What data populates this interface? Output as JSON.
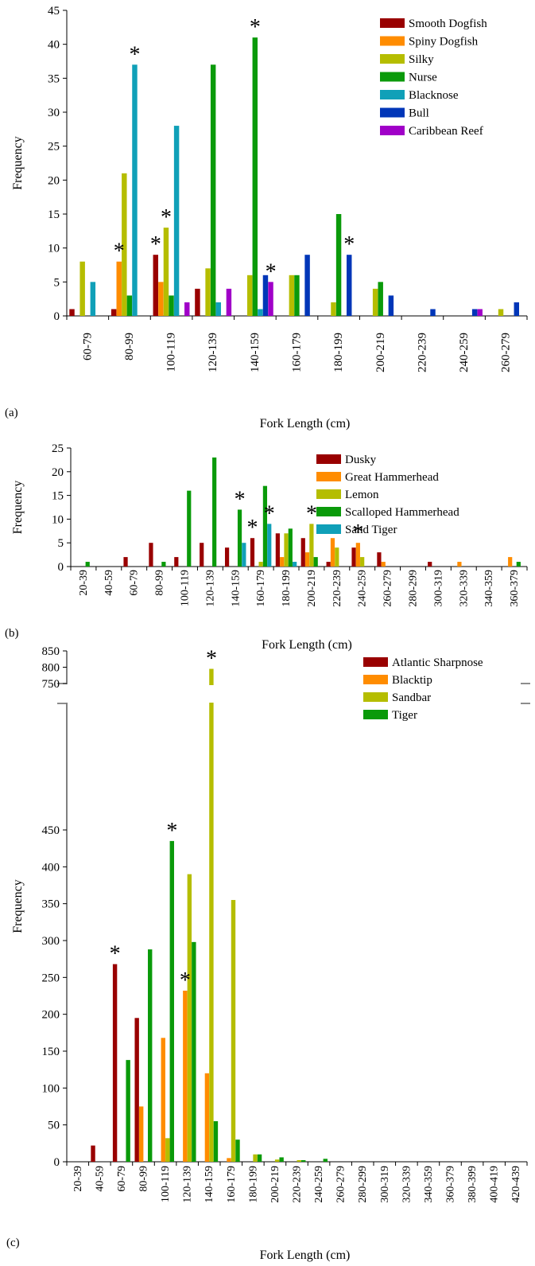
{
  "colors": {
    "c1": "#990000",
    "c2": "#ff8c00",
    "c3": "#b5bd00",
    "c4": "#0a9a0a",
    "c5": "#10a0b8",
    "c6": "#0036b8",
    "c7": "#a000c8"
  },
  "chart_data": [
    {
      "type": "bar",
      "panel": "(a)",
      "ylabel": "Frequency",
      "xlabel": "Fork Length (cm)",
      "ylim": [
        0,
        45
      ],
      "yticks": [
        0,
        5,
        10,
        15,
        20,
        25,
        30,
        35,
        40,
        45
      ],
      "legend_position": "top-right",
      "categories": [
        "60-79",
        "80-99",
        "100-119",
        "120-139",
        "140-159",
        "160-179",
        "180-199",
        "200-219",
        "220-239",
        "240-259",
        "260-279"
      ],
      "series": [
        {
          "name": "Smooth Dogfish",
          "color_key": "c1",
          "values": [
            1,
            1,
            9,
            4,
            0,
            0,
            0,
            0,
            0,
            0,
            0
          ]
        },
        {
          "name": "Spiny Dogfish",
          "color_key": "c2",
          "values": [
            0,
            8,
            5,
            0,
            0,
            0,
            0,
            0,
            0,
            0,
            0
          ]
        },
        {
          "name": "Silky",
          "color_key": "c3",
          "values": [
            8,
            21,
            13,
            7,
            6,
            6,
            2,
            4,
            0,
            0,
            1
          ]
        },
        {
          "name": "Nurse",
          "color_key": "c4",
          "values": [
            0,
            3,
            3,
            37,
            41,
            6,
            15,
            5,
            0,
            0,
            0
          ]
        },
        {
          "name": "Blacknose",
          "color_key": "c5",
          "values": [
            5,
            37,
            28,
            2,
            1,
            0,
            0,
            0,
            0,
            0,
            0
          ]
        },
        {
          "name": "Bull",
          "color_key": "c6",
          "values": [
            0,
            0,
            0,
            0,
            6,
            9,
            9,
            3,
            1,
            1,
            2
          ]
        },
        {
          "name": "Caribbean Reef",
          "color_key": "c7",
          "values": [
            0,
            0,
            2,
            4,
            5,
            0,
            0,
            0,
            0,
            1,
            0
          ]
        }
      ],
      "significant": [
        [
          1,
          1
        ],
        [
          1,
          4
        ],
        [
          2,
          0
        ],
        [
          2,
          2
        ],
        [
          4,
          3
        ],
        [
          4,
          6
        ],
        [
          6,
          5
        ]
      ],
      "annotation_symbol": "*"
    },
    {
      "type": "bar",
      "panel": "(b)",
      "ylabel": "Frequency",
      "xlabel": "Fork Length (cm)",
      "ylim": [
        0,
        25
      ],
      "yticks": [
        0,
        5,
        10,
        15,
        20,
        25
      ],
      "legend_position": "top-right",
      "categories": [
        "20-39",
        "40-59",
        "60-79",
        "80-99",
        "100-119",
        "120-139",
        "140-159",
        "160-179",
        "180-199",
        "200-219",
        "220-239",
        "240-259",
        "260-279",
        "280-299",
        "300-319",
        "320-339",
        "340-359",
        "360-379"
      ],
      "series": [
        {
          "name": "Dusky",
          "color_key": "c1",
          "values": [
            0,
            0,
            2,
            5,
            2,
            5,
            4,
            6,
            7,
            6,
            1,
            4,
            3,
            0,
            1,
            0,
            0,
            0
          ]
        },
        {
          "name": "Great Hammerhead",
          "color_key": "c2",
          "values": [
            0,
            0,
            0,
            0,
            0,
            0,
            0,
            0,
            2,
            3,
            6,
            5,
            1,
            0,
            0,
            1,
            0,
            2
          ]
        },
        {
          "name": "Lemon",
          "color_key": "c3",
          "values": [
            0,
            0,
            0,
            0,
            0,
            0,
            0,
            1,
            7,
            9,
            4,
            2,
            0,
            0,
            0,
            0,
            0,
            0
          ]
        },
        {
          "name": "Scalloped Hammerhead",
          "color_key": "c4",
          "values": [
            1,
            0,
            0,
            1,
            16,
            23,
            12,
            17,
            8,
            2,
            0,
            0,
            0,
            0,
            0,
            0,
            0,
            1
          ]
        },
        {
          "name": "Sand Tiger",
          "color_key": "c5",
          "values": [
            0,
            0,
            0,
            0,
            0,
            0,
            5,
            9,
            1,
            0,
            0,
            0,
            0,
            0,
            0,
            0,
            0,
            0
          ]
        }
      ],
      "significant": [
        [
          6,
          3
        ],
        [
          7,
          0
        ],
        [
          7,
          4
        ],
        [
          9,
          2
        ],
        [
          11,
          1
        ]
      ],
      "annotation_symbol": "*"
    },
    {
      "type": "bar",
      "panel": "(c)",
      "ylabel": "Frequency",
      "xlabel": "Fork Length (cm)",
      "ylim": [
        0,
        850
      ],
      "axis_break": [
        475,
        725
      ],
      "yticks": [
        0,
        50,
        100,
        150,
        200,
        250,
        300,
        350,
        400,
        450,
        750,
        800,
        850
      ],
      "legend_position": "top-right",
      "categories": [
        "20-39",
        "40-59",
        "60-79",
        "80-99",
        "100-119",
        "120-139",
        "140-159",
        "160-179",
        "180-199",
        "200-219",
        "220-239",
        "240-259",
        "260-279",
        "280-299",
        "300-319",
        "320-339",
        "340-359",
        "360-379",
        "380-399",
        "400-419",
        "420-439"
      ],
      "series": [
        {
          "name": "Atlantic Sharpnose",
          "color_key": "c1",
          "values": [
            0,
            22,
            268,
            195,
            0,
            0,
            0,
            0,
            0,
            0,
            0,
            0,
            0,
            0,
            0,
            0,
            0,
            0,
            0,
            0,
            0
          ]
        },
        {
          "name": "Blacktip",
          "color_key": "c2",
          "values": [
            0,
            0,
            0,
            75,
            168,
            232,
            120,
            5,
            0,
            0,
            0,
            0,
            0,
            0,
            0,
            0,
            0,
            0,
            0,
            0,
            0
          ]
        },
        {
          "name": "Sandbar",
          "color_key": "c3",
          "values": [
            0,
            0,
            0,
            0,
            32,
            390,
            795,
            355,
            10,
            3,
            2,
            0,
            0,
            0,
            0,
            0,
            0,
            0,
            0,
            0,
            0
          ]
        },
        {
          "name": "Tiger",
          "color_key": "c4",
          "values": [
            0,
            0,
            138,
            288,
            435,
            298,
            55,
            30,
            10,
            6,
            2,
            4,
            0,
            0,
            0,
            0,
            0,
            0,
            0,
            0,
            0
          ]
        }
      ],
      "significant": [
        [
          2,
          0
        ],
        [
          4,
          3
        ],
        [
          5,
          1
        ],
        [
          6,
          2
        ]
      ],
      "annotation_symbol": "*"
    }
  ]
}
